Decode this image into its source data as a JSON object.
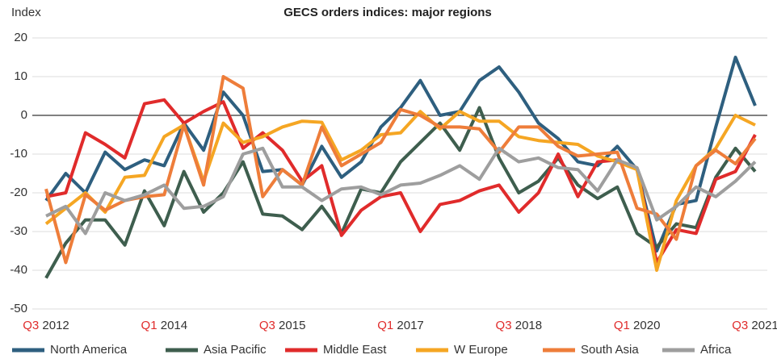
{
  "chart_data": {
    "type": "line",
    "title": "GECS orders indices: major regions",
    "y_label": "Index",
    "categories": [
      "Q3 2012",
      null,
      null,
      null,
      null,
      null,
      "Q1 2014",
      null,
      null,
      null,
      null,
      null,
      "Q3 2015",
      null,
      null,
      null,
      null,
      null,
      "Q1 2017",
      null,
      null,
      null,
      null,
      null,
      "Q3 2018",
      null,
      null,
      null,
      null,
      null,
      "Q1 2020",
      null,
      null,
      null,
      null,
      null,
      "Q3 2021"
    ],
    "series": [
      {
        "name": "North America",
        "color": "#2e5f7f",
        "values": [
          -22,
          -15,
          -20,
          -9.5,
          -14,
          -11.5,
          -13,
          -2,
          -9,
          6,
          0,
          -14.5,
          -14,
          -18,
          -8,
          -16,
          -12,
          -3,
          2,
          9,
          0,
          1,
          9,
          12.5,
          6,
          -2,
          -6,
          -12,
          -13,
          -8,
          -14,
          -35,
          -23,
          -22,
          -3,
          15,
          2.5
        ]
      },
      {
        "name": "Asia Pacific",
        "color": "#3e5e4e",
        "values": [
          -42,
          -33,
          -27,
          -27,
          -33.5,
          -19.5,
          -28.5,
          -14.5,
          -25,
          -20,
          -12,
          -25.5,
          -26,
          -29.5,
          -23.5,
          -30.5,
          -19,
          -20,
          -12,
          -7,
          -2,
          -9,
          2,
          -11,
          -20,
          -17,
          -11,
          -18,
          -21.5,
          -18.5,
          -30.5,
          -34,
          -28,
          -29,
          -16,
          -8.5,
          -14.5
        ]
      },
      {
        "name": "Middle East",
        "color": "#e02b2b",
        "values": [
          -21,
          -20,
          -4.5,
          -7.5,
          -11,
          3,
          4,
          -2,
          1,
          3.5,
          -8.5,
          -4.5,
          -9,
          -17,
          -13,
          -31,
          -24.5,
          -21,
          -20,
          -30,
          -23,
          -22,
          -19.5,
          -18,
          -25,
          -20,
          -10,
          -21,
          -12,
          -11.5,
          -14,
          -38,
          -29.5,
          -30.5,
          -16.5,
          -14.5,
          -5
        ]
      },
      {
        "name": "W Europe",
        "color": "#f5a623",
        "values": [
          -28,
          -24,
          -20,
          -25,
          -16,
          -15.5,
          -5.5,
          -2.5,
          -17,
          -2,
          -7,
          -5.5,
          -3,
          -1.5,
          -1.8,
          -11.5,
          -9,
          -5,
          -4.5,
          1,
          -3.5,
          1,
          -1.5,
          -1.5,
          -5.5,
          -6.5,
          -7,
          -7.5,
          -10.5,
          -12,
          -14,
          -40,
          -22,
          -13,
          -8.5,
          0,
          -2.5
        ]
      },
      {
        "name": "South Asia",
        "color": "#ee7d3a",
        "values": [
          -19,
          -38,
          -20.5,
          -24.5,
          -22,
          -21,
          -20.5,
          -2.5,
          -18,
          10,
          7,
          -21,
          -14,
          -18,
          -3,
          -13,
          -10,
          -7,
          1.5,
          0,
          -3,
          -3,
          -3.5,
          -9.5,
          -3,
          -3,
          -8,
          -10.5,
          -10,
          -9.5,
          -24,
          -25.5,
          -32,
          -13,
          -9,
          -12.5,
          -6
        ]
      },
      {
        "name": "Africa",
        "color": "#9e9e9e",
        "values": [
          -26,
          -23.5,
          -30.5,
          -20,
          -22,
          -20.5,
          -18,
          -24,
          -23.5,
          -21,
          -10,
          -8.5,
          -18.5,
          -18.5,
          -22,
          -19,
          -18.5,
          -20.5,
          -18,
          -17.5,
          -15.5,
          -13,
          -16.5,
          -8.5,
          -12,
          -11,
          -13.5,
          -14,
          -19.5,
          -11.5,
          -13.5,
          -27,
          -23.5,
          -18.5,
          -21,
          -17,
          -12
        ]
      }
    ],
    "ylim": [
      -50,
      20
    ],
    "yticks": [
      -50,
      -40,
      -30,
      -20,
      -10,
      0,
      10,
      20
    ],
    "grid": true
  }
}
